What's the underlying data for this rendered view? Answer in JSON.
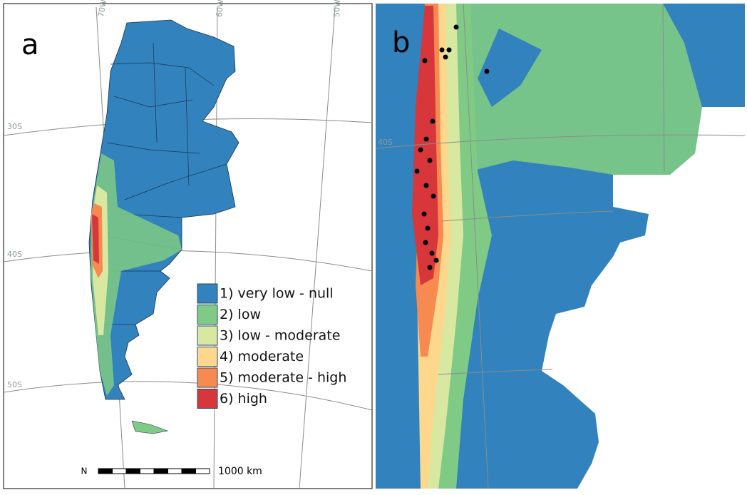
{
  "panel_a": {
    "label": "a",
    "graticule": {
      "lon": [
        "70W",
        "60W",
        "50W"
      ],
      "lat": [
        "30S",
        "40S",
        "50S"
      ]
    },
    "legend": [
      {
        "label": "1) very low - null",
        "color": "#3182bd"
      },
      {
        "label": "2) low",
        "color": "#7fcb85"
      },
      {
        "label": "3) low - moderate",
        "color": "#d9e8a0"
      },
      {
        "label": "4) moderate",
        "color": "#fdd78c"
      },
      {
        "label": "5) moderate - high",
        "color": "#f68a50"
      },
      {
        "label": "6) high",
        "color": "#d7373a"
      }
    ],
    "north": "N",
    "scale": "1000 km"
  },
  "panel_b": {
    "label": "b",
    "graticule": {
      "lat": [
        "40S"
      ]
    }
  }
}
